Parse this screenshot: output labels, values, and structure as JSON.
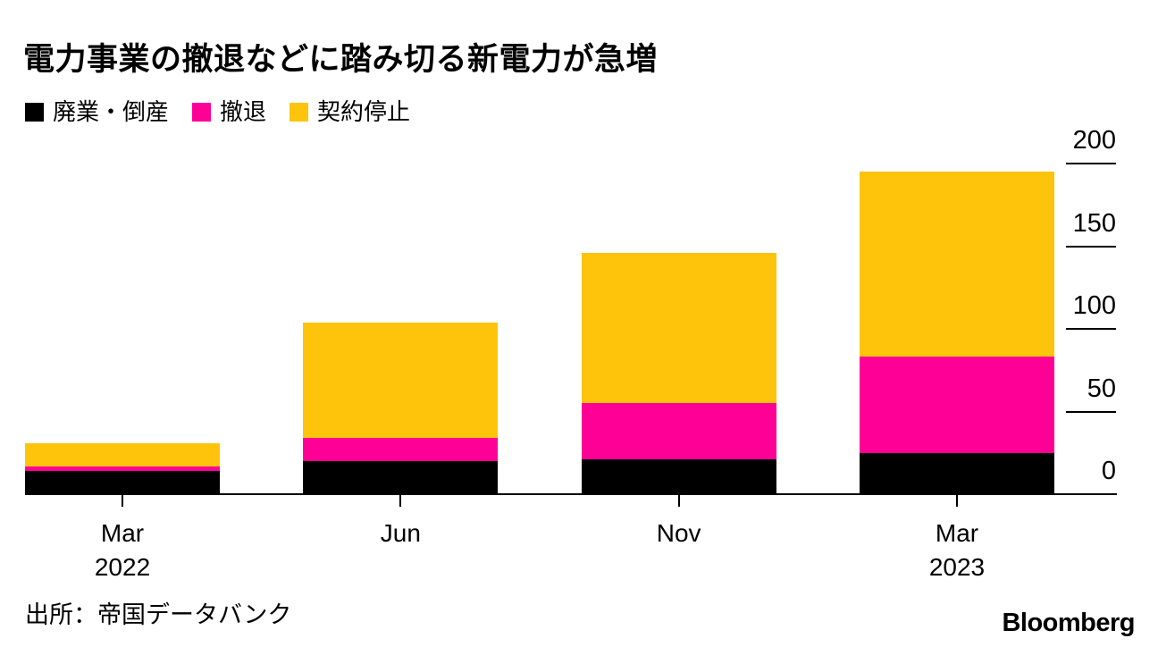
{
  "chart": {
    "title": "電力事業の撤退などに踏み切る新電力が急増",
    "source": "出所：帝国データバンク",
    "brand": "Bloomberg"
  },
  "chart_data": {
    "type": "bar",
    "stacked": true,
    "title": "電力事業の撤退などに踏み切る新電力が急増",
    "source": "出所：帝国データバンク",
    "categories": [
      "Mar 2022",
      "Jun",
      "Nov",
      "Mar 2023"
    ],
    "category_label_lines": [
      [
        "Mar",
        "2022"
      ],
      [
        "Jun"
      ],
      [
        "Nov"
      ],
      [
        "Mar",
        "2023"
      ]
    ],
    "series": [
      {
        "name": "廃業・倒産",
        "color": "#000000",
        "values": [
          14,
          20,
          21,
          25
        ]
      },
      {
        "name": "撤退",
        "color": "#ff0096",
        "values": [
          3,
          14,
          34,
          58
        ]
      },
      {
        "name": "契約停止",
        "color": "#fdc40b",
        "values": [
          14,
          70,
          91,
          112
        ]
      }
    ],
    "totals": [
      31,
      104,
      146,
      195
    ],
    "ylim": [
      0,
      200
    ],
    "yticks": [
      0,
      50,
      100,
      150,
      200
    ],
    "y_axis_side": "right",
    "legend_position": "top-left",
    "grid": false,
    "background_color": "#ffffff"
  }
}
